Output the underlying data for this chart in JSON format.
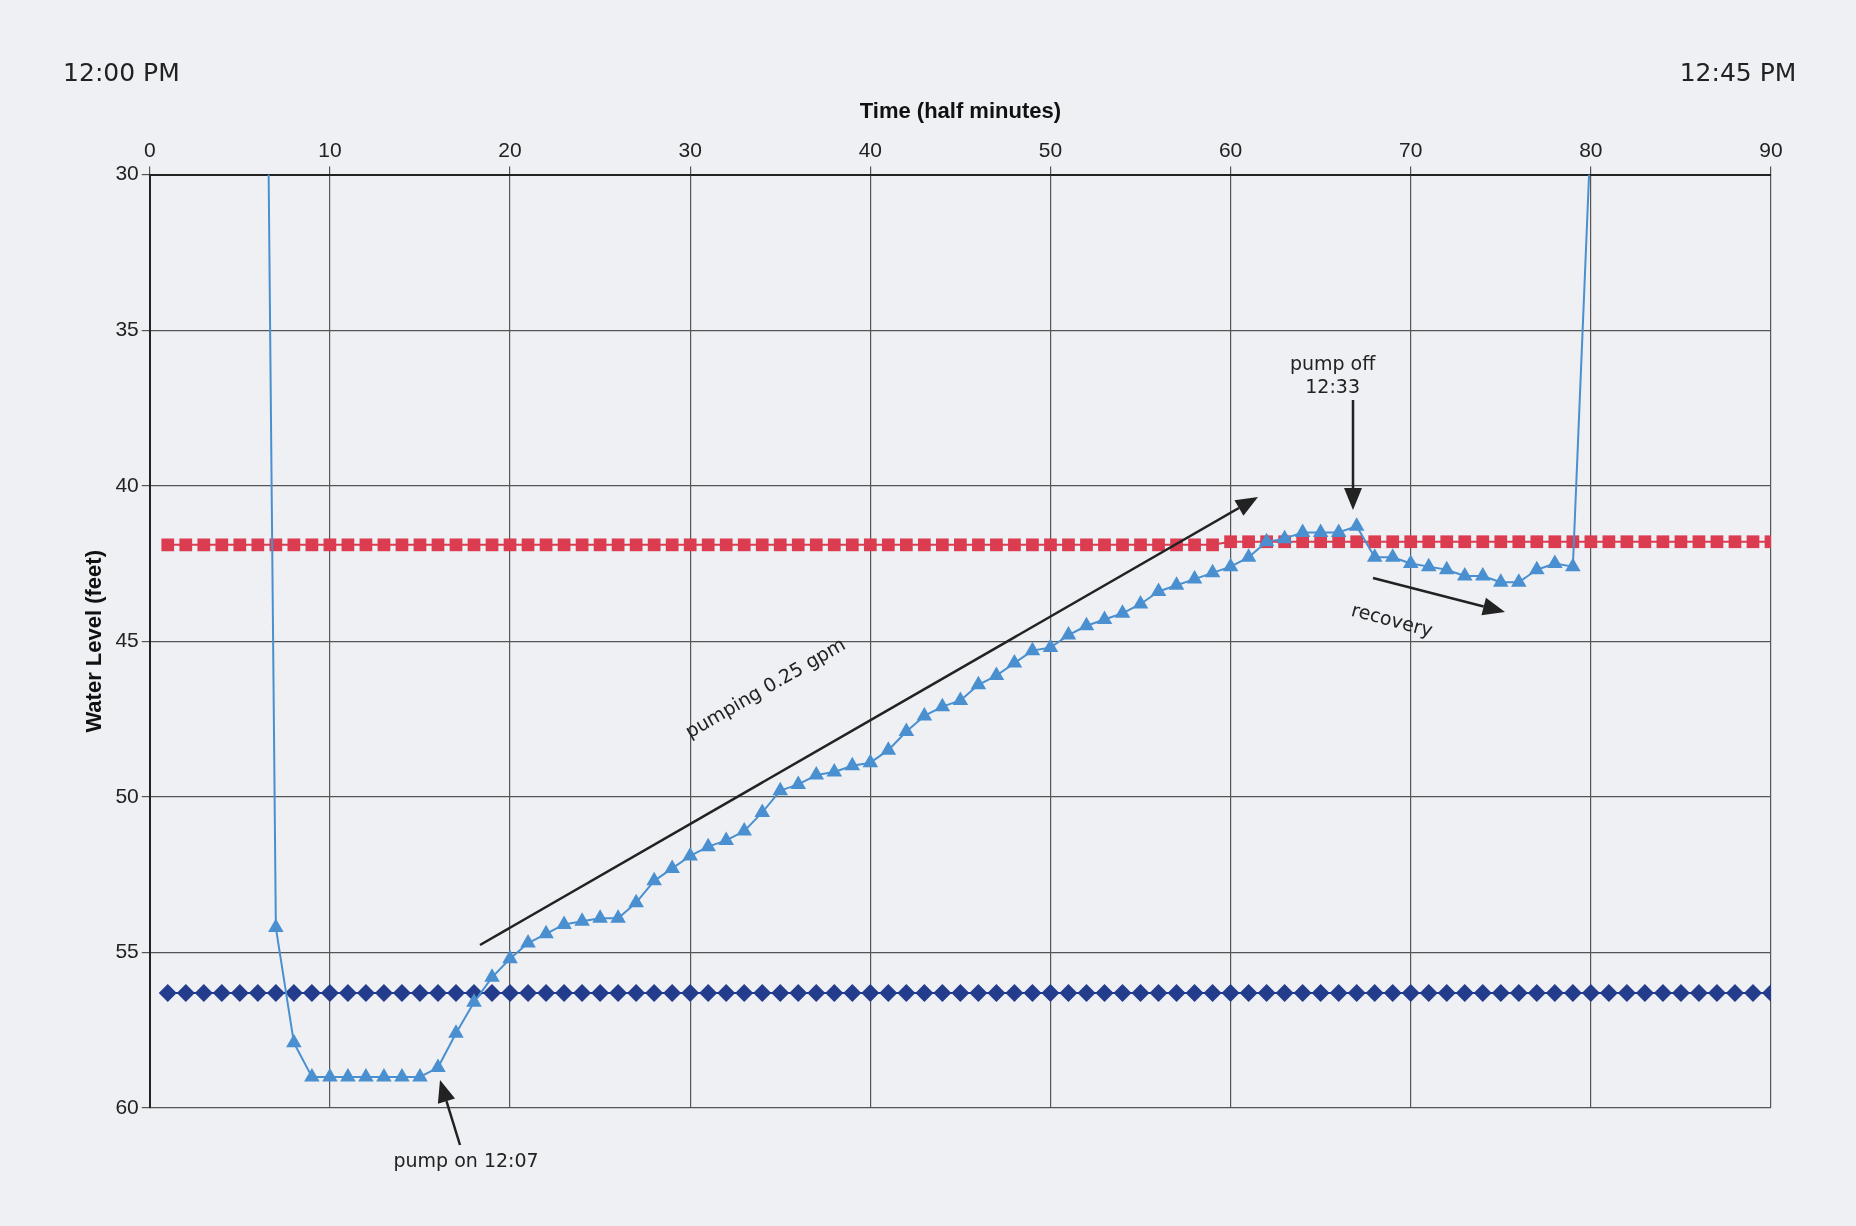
{
  "chart_data": {
    "type": "line",
    "xlabel": "Time (half minutes)",
    "ylabel": "Water Level (feet)",
    "xlim": [
      0,
      90
    ],
    "xticks": [
      0,
      10,
      20,
      30,
      40,
      50,
      60,
      70,
      80,
      90
    ],
    "ylim": [
      60,
      30
    ],
    "yticks": [
      30,
      35,
      40,
      45,
      50,
      55,
      60
    ],
    "grid": true,
    "legend": false,
    "line_style": "solid",
    "annotations": [
      "12:00 PM",
      "12:45 PM",
      "pump on 12:07",
      "pump off\n12:33",
      "pumping 0.25 gpm",
      "recovery"
    ],
    "series": [
      {
        "color": "#233d8c",
        "marker": "diamond",
        "x": [
          1,
          2,
          3,
          4,
          5,
          6,
          7,
          8,
          9,
          10,
          11,
          12,
          13,
          14,
          15,
          16,
          17,
          18,
          19,
          20,
          21,
          22,
          23,
          24,
          25,
          26,
          27,
          28,
          29,
          30,
          31,
          32,
          33,
          34,
          35,
          36,
          37,
          38,
          39,
          40,
          41,
          42,
          43,
          44,
          45,
          46,
          47,
          48,
          49,
          50,
          51,
          52,
          53,
          54,
          55,
          56,
          57,
          58,
          59,
          60,
          61,
          62,
          63,
          64,
          65,
          66,
          67,
          68,
          69,
          70,
          71,
          72,
          73,
          74,
          75,
          76,
          77,
          78,
          79,
          80,
          81,
          82,
          83,
          84,
          85,
          86,
          87,
          88,
          89,
          90
        ],
        "values": [
          56.3,
          56.3,
          56.3,
          56.3,
          56.3,
          56.3,
          56.3,
          56.3,
          56.3,
          56.3,
          56.3,
          56.3,
          56.3,
          56.3,
          56.3,
          56.3,
          56.3,
          56.3,
          56.3,
          56.3,
          56.3,
          56.3,
          56.3,
          56.3,
          56.3,
          56.3,
          56.3,
          56.3,
          56.3,
          56.3,
          56.3,
          56.3,
          56.3,
          56.3,
          56.3,
          56.3,
          56.3,
          56.3,
          56.3,
          56.3,
          56.3,
          56.3,
          56.3,
          56.3,
          56.3,
          56.3,
          56.3,
          56.3,
          56.3,
          56.3,
          56.3,
          56.3,
          56.3,
          56.3,
          56.3,
          56.3,
          56.3,
          56.3,
          56.3,
          56.3,
          56.3,
          56.3,
          56.3,
          56.3,
          56.3,
          56.3,
          56.3,
          56.3,
          56.3,
          56.3,
          56.3,
          56.3,
          56.3,
          56.3,
          56.3,
          56.3,
          56.3,
          56.3,
          56.3,
          56.3,
          56.3,
          56.3,
          56.3,
          56.3,
          56.3,
          56.3,
          56.3,
          56.3,
          56.3,
          56.3
        ]
      },
      {
        "color": "#dc3c50",
        "marker": "square",
        "x": [
          1,
          2,
          3,
          4,
          5,
          6,
          7,
          8,
          9,
          10,
          11,
          12,
          13,
          14,
          15,
          16,
          17,
          18,
          19,
          20,
          21,
          22,
          23,
          24,
          25,
          26,
          27,
          28,
          29,
          30,
          31,
          32,
          33,
          34,
          35,
          36,
          37,
          38,
          39,
          40,
          41,
          42,
          43,
          44,
          45,
          46,
          47,
          48,
          49,
          50,
          51,
          52,
          53,
          54,
          55,
          56,
          57,
          58,
          59,
          60,
          61,
          62,
          63,
          64,
          65,
          66,
          67,
          68,
          69,
          70,
          71,
          72,
          73,
          74,
          75,
          76,
          77,
          78,
          79,
          80,
          81,
          82,
          83,
          84,
          85,
          86,
          87,
          88,
          89,
          90
        ],
        "values": [
          41.9,
          41.9,
          41.9,
          41.9,
          41.9,
          41.9,
          41.9,
          41.9,
          41.9,
          41.9,
          41.9,
          41.9,
          41.9,
          41.9,
          41.9,
          41.9,
          41.9,
          41.9,
          41.9,
          41.9,
          41.9,
          41.9,
          41.9,
          41.9,
          41.9,
          41.9,
          41.9,
          41.9,
          41.9,
          41.9,
          41.9,
          41.9,
          41.9,
          41.9,
          41.9,
          41.9,
          41.9,
          41.9,
          41.9,
          41.9,
          41.9,
          41.9,
          41.9,
          41.9,
          41.9,
          41.9,
          41.9,
          41.9,
          41.9,
          41.9,
          41.9,
          41.9,
          41.9,
          41.9,
          41.9,
          41.9,
          41.9,
          41.9,
          41.9,
          41.8,
          41.8,
          41.8,
          41.8,
          41.8,
          41.8,
          41.8,
          41.8,
          41.8,
          41.8,
          41.8,
          41.8,
          41.8,
          41.8,
          41.8,
          41.8,
          41.8,
          41.8,
          41.8,
          41.8,
          41.8,
          41.8,
          41.8,
          41.8,
          41.8,
          41.8,
          41.8,
          41.8,
          41.8,
          41.8,
          41.8
        ]
      },
      {
        "color": "#4a90d0",
        "marker": "triangle",
        "x": [
          6.6,
          7,
          8,
          9,
          10,
          11,
          12,
          13,
          14,
          15,
          16,
          17,
          18,
          19,
          20,
          21,
          22,
          23,
          24,
          25,
          26,
          27,
          28,
          29,
          30,
          31,
          32,
          33,
          34,
          35,
          36,
          37,
          38,
          39,
          40,
          41,
          42,
          43,
          44,
          45,
          46,
          47,
          48,
          49,
          50,
          51,
          52,
          53,
          54,
          55,
          56,
          57,
          58,
          59,
          60,
          61,
          62,
          63,
          64,
          65,
          66,
          67,
          68,
          69,
          70,
          71,
          72,
          73,
          74,
          75,
          76,
          77,
          78,
          79,
          79.9
        ],
        "values": [
          30,
          54.2,
          57.9,
          59.0,
          59.0,
          59.0,
          59.0,
          59.0,
          59.0,
          59.0,
          58.7,
          57.6,
          56.6,
          55.8,
          55.2,
          54.7,
          54.4,
          54.1,
          54.0,
          53.9,
          53.9,
          53.4,
          52.7,
          52.3,
          51.9,
          51.6,
          51.4,
          51.1,
          50.5,
          49.8,
          49.6,
          49.3,
          49.2,
          49.0,
          48.9,
          48.5,
          47.9,
          47.4,
          47.1,
          46.9,
          46.4,
          46.1,
          45.7,
          45.3,
          45.2,
          44.8,
          44.5,
          44.3,
          44.1,
          43.8,
          43.4,
          43.2,
          43.0,
          42.8,
          42.6,
          42.3,
          41.8,
          41.7,
          41.5,
          41.5,
          41.5,
          41.3,
          42.3,
          42.3,
          42.5,
          42.6,
          42.7,
          42.9,
          42.9,
          43.1,
          43.1,
          42.7,
          42.5,
          42.6,
          30
        ]
      }
    ]
  }
}
